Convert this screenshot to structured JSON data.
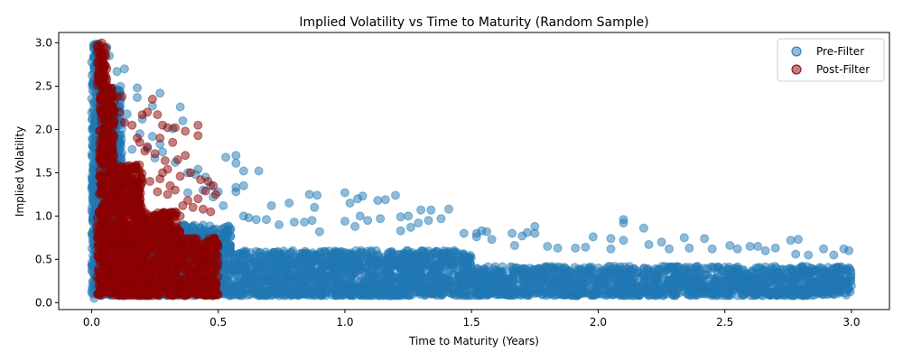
{
  "chart_data": {
    "type": "scatter",
    "title": "Implied Volatility vs Time to Maturity (Random Sample)",
    "xlabel": "Time to Maturity (Years)",
    "ylabel": "Implied Volatility",
    "xlim": [
      -0.13,
      3.15
    ],
    "ylim": [
      -0.08,
      3.12
    ],
    "xticks": [
      0.0,
      0.5,
      1.0,
      1.5,
      2.0,
      2.5,
      3.0
    ],
    "xtick_labels": [
      "0.0",
      "0.5",
      "1.0",
      "1.5",
      "2.0",
      "2.5",
      "3.0"
    ],
    "yticks": [
      0.0,
      0.5,
      1.0,
      1.5,
      2.0,
      2.5,
      3.0
    ],
    "ytick_labels": [
      "0.0",
      "0.5",
      "1.0",
      "1.5",
      "2.0",
      "2.5",
      "3.0"
    ],
    "grid": false,
    "legend_position": "top-right",
    "series": [
      {
        "name": "Pre-Filter",
        "color": "#1f77b4",
        "points": [
          [
            0.01,
            2.95
          ],
          [
            0.01,
            2.85
          ],
          [
            0.01,
            2.7
          ],
          [
            0.02,
            2.6
          ],
          [
            0.01,
            2.5
          ],
          [
            0.02,
            2.4
          ],
          [
            0.01,
            2.3
          ],
          [
            0.01,
            2.2
          ],
          [
            0.02,
            2.1
          ],
          [
            0.01,
            2.0
          ],
          [
            0.02,
            1.9
          ],
          [
            0.01,
            1.8
          ],
          [
            0.02,
            1.7
          ],
          [
            0.01,
            1.6
          ],
          [
            0.01,
            1.5
          ],
          [
            0.02,
            1.4
          ],
          [
            0.01,
            1.3
          ],
          [
            0.01,
            1.2
          ],
          [
            0.02,
            1.1
          ],
          [
            0.01,
            1.0
          ],
          [
            0.02,
            0.9
          ],
          [
            0.01,
            0.8
          ],
          [
            0.02,
            0.7
          ],
          [
            0.01,
            0.6
          ],
          [
            0.02,
            0.5
          ],
          [
            0.01,
            0.4
          ],
          [
            0.02,
            0.3
          ],
          [
            0.01,
            0.2
          ],
          [
            0.02,
            0.1
          ],
          [
            0.01,
            0.05
          ],
          [
            0.06,
            2.95
          ],
          [
            0.07,
            2.85
          ],
          [
            0.1,
            2.67
          ],
          [
            0.13,
            2.7
          ],
          [
            0.08,
            2.47
          ],
          [
            0.1,
            2.45
          ],
          [
            0.18,
            2.48
          ],
          [
            0.18,
            2.37
          ],
          [
            0.11,
            2.38
          ],
          [
            0.14,
            2.18
          ],
          [
            0.2,
            2.12
          ],
          [
            0.24,
            2.27
          ],
          [
            0.27,
            2.42
          ],
          [
            0.35,
            2.26
          ],
          [
            0.36,
            2.1
          ],
          [
            0.32,
            2.01
          ],
          [
            0.19,
            1.95
          ],
          [
            0.24,
            1.92
          ],
          [
            0.27,
            1.83
          ],
          [
            0.22,
            1.78
          ],
          [
            0.16,
            1.77
          ],
          [
            0.28,
            1.74
          ],
          [
            0.25,
            1.67
          ],
          [
            0.33,
            1.62
          ],
          [
            0.38,
            1.5
          ],
          [
            0.41,
            1.48
          ],
          [
            0.42,
            1.54
          ],
          [
            0.45,
            1.45
          ],
          [
            0.47,
            1.35
          ],
          [
            0.44,
            1.3
          ],
          [
            0.38,
            1.27
          ],
          [
            0.5,
            1.28
          ],
          [
            0.48,
            1.22
          ],
          [
            0.53,
            1.68
          ],
          [
            0.57,
            1.7
          ],
          [
            0.57,
            1.61
          ],
          [
            0.6,
            1.52
          ],
          [
            0.66,
            1.52
          ],
          [
            0.6,
            1.35
          ],
          [
            0.57,
            1.33
          ],
          [
            0.57,
            1.28
          ],
          [
            0.52,
            1.12
          ],
          [
            0.62,
            0.98
          ],
          [
            0.6,
            1.0
          ],
          [
            0.65,
            0.96
          ],
          [
            0.71,
            1.12
          ],
          [
            0.78,
            1.15
          ],
          [
            0.86,
            1.25
          ],
          [
            0.89,
            1.24
          ],
          [
            0.88,
            1.1
          ],
          [
            0.69,
            0.96
          ],
          [
            0.74,
            0.9
          ],
          [
            0.8,
            0.93
          ],
          [
            0.84,
            0.93
          ],
          [
            0.87,
            0.95
          ],
          [
            0.9,
            0.82
          ],
          [
            1.0,
            1.27
          ],
          [
            1.05,
            1.2
          ],
          [
            1.07,
            1.23
          ],
          [
            1.13,
            1.18
          ],
          [
            1.16,
            1.19
          ],
          [
            1.2,
            1.24
          ],
          [
            1.02,
            1.15
          ],
          [
            1.06,
            1.0
          ],
          [
            1.09,
            0.95
          ],
          [
            1.14,
            0.97
          ],
          [
            1.0,
            0.94
          ],
          [
            1.04,
            0.88
          ],
          [
            1.22,
            0.99
          ],
          [
            1.25,
            1.0
          ],
          [
            1.3,
            1.07
          ],
          [
            1.34,
            1.07
          ],
          [
            1.38,
            0.97
          ],
          [
            1.41,
            1.08
          ],
          [
            1.29,
            0.92
          ],
          [
            1.33,
            0.95
          ],
          [
            1.26,
            0.87
          ],
          [
            1.22,
            0.83
          ],
          [
            1.47,
            0.8
          ],
          [
            1.52,
            0.8
          ],
          [
            1.54,
            0.83
          ],
          [
            1.56,
            0.82
          ],
          [
            1.52,
            0.76
          ],
          [
            1.58,
            0.73
          ],
          [
            1.66,
            0.8
          ],
          [
            1.72,
            0.81
          ],
          [
            1.75,
            0.88
          ],
          [
            1.75,
            0.8
          ],
          [
            1.7,
            0.77
          ],
          [
            1.67,
            0.66
          ],
          [
            1.8,
            0.65
          ],
          [
            1.84,
            0.63
          ],
          [
            1.91,
            0.63
          ],
          [
            1.95,
            0.64
          ],
          [
            1.98,
            0.76
          ],
          [
            2.05,
            0.74
          ],
          [
            2.1,
            0.96
          ],
          [
            2.1,
            0.92
          ],
          [
            2.18,
            0.86
          ],
          [
            2.1,
            0.72
          ],
          [
            2.05,
            0.62
          ],
          [
            2.2,
            0.67
          ],
          [
            2.25,
            0.7
          ],
          [
            2.28,
            0.62
          ],
          [
            2.34,
            0.75
          ],
          [
            2.36,
            0.63
          ],
          [
            2.42,
            0.74
          ],
          [
            2.45,
            0.62
          ],
          [
            2.52,
            0.66
          ],
          [
            2.55,
            0.62
          ],
          [
            2.6,
            0.65
          ],
          [
            2.63,
            0.65
          ],
          [
            2.66,
            0.6
          ],
          [
            2.7,
            0.63
          ],
          [
            2.76,
            0.72
          ],
          [
            2.79,
            0.73
          ],
          [
            2.78,
            0.56
          ],
          [
            2.83,
            0.55
          ],
          [
            2.89,
            0.62
          ],
          [
            2.93,
            0.55
          ],
          [
            2.97,
            0.62
          ],
          [
            2.99,
            0.6
          ]
        ],
        "bands": [
          [
            0.0,
            3.0,
            0.08,
            0.42
          ],
          [
            0.0,
            1.5,
            0.42,
            0.6
          ],
          [
            0.0,
            0.55,
            0.6,
            0.9
          ],
          [
            0.0,
            0.12,
            0.9,
            2.5
          ],
          [
            0.0,
            0.03,
            2.5,
            3.0
          ]
        ],
        "bands_note": "dense regions [xmin, xmax, ymin, ymax] in data units"
      },
      {
        "name": "Post-Filter",
        "color": "#8b0000",
        "points": [
          [
            0.02,
            2.97
          ],
          [
            0.03,
            2.98
          ],
          [
            0.04,
            3.0
          ],
          [
            0.05,
            2.95
          ],
          [
            0.03,
            2.9
          ],
          [
            0.04,
            2.8
          ],
          [
            0.06,
            2.7
          ],
          [
            0.05,
            2.6
          ],
          [
            0.04,
            2.5
          ],
          [
            0.06,
            2.4
          ],
          [
            0.08,
            2.35
          ],
          [
            0.07,
            2.25
          ],
          [
            0.1,
            2.38
          ],
          [
            0.12,
            2.38
          ],
          [
            0.11,
            2.2
          ],
          [
            0.09,
            2.1
          ],
          [
            0.13,
            2.08
          ],
          [
            0.16,
            2.05
          ],
          [
            0.2,
            2.17
          ],
          [
            0.22,
            2.2
          ],
          [
            0.24,
            2.35
          ],
          [
            0.26,
            2.17
          ],
          [
            0.28,
            2.05
          ],
          [
            0.3,
            2.02
          ],
          [
            0.33,
            2.02
          ],
          [
            0.37,
            1.98
          ],
          [
            0.42,
            2.05
          ],
          [
            0.42,
            1.93
          ],
          [
            0.32,
            1.85
          ],
          [
            0.27,
            1.9
          ],
          [
            0.18,
            1.9
          ],
          [
            0.19,
            1.85
          ],
          [
            0.21,
            1.75
          ],
          [
            0.22,
            1.8
          ],
          [
            0.25,
            1.72
          ],
          [
            0.29,
            1.64
          ],
          [
            0.34,
            1.65
          ],
          [
            0.37,
            1.7
          ],
          [
            0.3,
            1.54
          ],
          [
            0.28,
            1.5
          ],
          [
            0.35,
            1.46
          ],
          [
            0.39,
            1.5
          ],
          [
            0.27,
            1.43
          ],
          [
            0.23,
            1.4
          ],
          [
            0.31,
            1.35
          ],
          [
            0.33,
            1.3
          ],
          [
            0.43,
            1.42
          ],
          [
            0.46,
            1.4
          ],
          [
            0.48,
            1.35
          ],
          [
            0.45,
            1.29
          ],
          [
            0.49,
            1.25
          ],
          [
            0.42,
            1.2
          ],
          [
            0.38,
            1.18
          ],
          [
            0.36,
            1.12
          ],
          [
            0.44,
            1.08
          ],
          [
            0.47,
            1.05
          ],
          [
            0.3,
            1.25
          ],
          [
            0.26,
            1.28
          ],
          [
            0.4,
            1.1
          ],
          [
            0.35,
            1.0
          ]
        ],
        "bands": [
          [
            0.02,
            0.5,
            0.08,
            0.75
          ],
          [
            0.02,
            0.35,
            0.75,
            1.05
          ],
          [
            0.03,
            0.2,
            1.05,
            1.6
          ],
          [
            0.03,
            0.09,
            1.6,
            2.5
          ],
          [
            0.02,
            0.06,
            2.5,
            2.95
          ]
        ],
        "bands_note": "dense regions [xmin, xmax, ymin, ymax] in data units"
      }
    ]
  }
}
